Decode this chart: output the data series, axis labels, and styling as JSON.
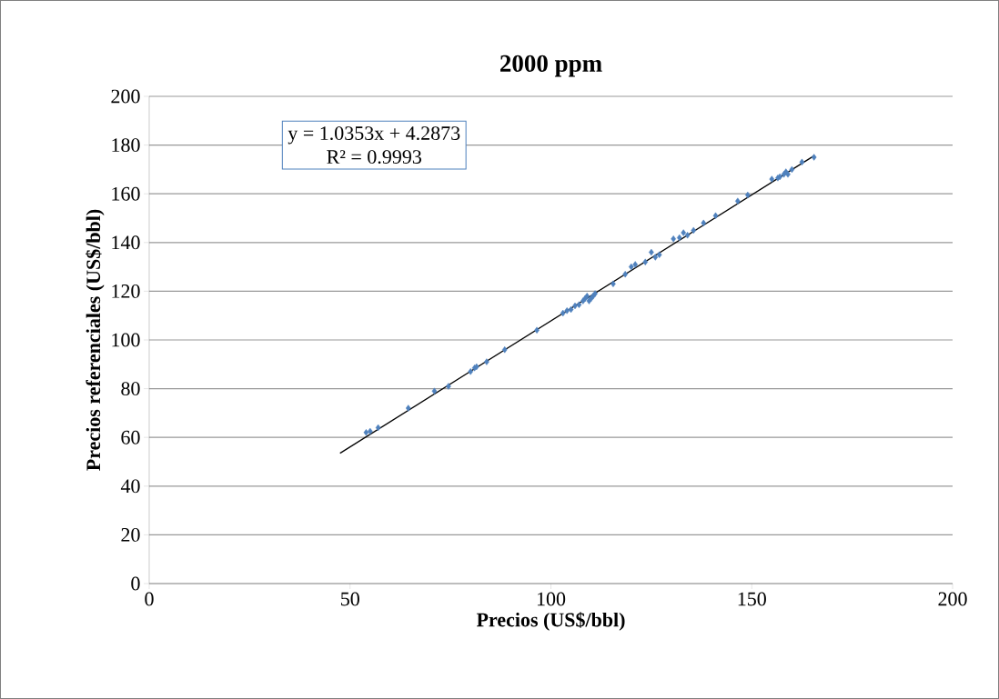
{
  "chart_data": {
    "type": "scatter",
    "title": "2000 ppm",
    "xlabel": "Precios (US$/bbl)",
    "ylabel": "Precios referenciales (US$/bbl)",
    "annotations": [
      "y = 1.0353x + 4.2873",
      "R² = 0.9993"
    ],
    "xlim": [
      0,
      200
    ],
    "xticks": [
      0,
      50,
      100,
      150,
      200
    ],
    "ylim": [
      0,
      200
    ],
    "yticks": [
      0,
      20,
      40,
      60,
      80,
      100,
      120,
      140,
      160,
      180,
      200
    ],
    "grid": "y",
    "marker": "diamond",
    "series": [
      {
        "color": "#4f81bd",
        "x": [
          54,
          55,
          57,
          64.5,
          71,
          74.5,
          80,
          81,
          81.5,
          84,
          88.5,
          96.5,
          103,
          104,
          105,
          106,
          107,
          108,
          108.5,
          109,
          109.5,
          110,
          110.5,
          111,
          115.5,
          118.5,
          120,
          121,
          123.5,
          125,
          126,
          127,
          130.5,
          132,
          133,
          134,
          135.5,
          138,
          141,
          146.5,
          149,
          155,
          156.5,
          157,
          158,
          158.5,
          159,
          160,
          162.5,
          165.5
        ],
        "values": [
          62,
          62.5,
          64,
          72,
          79,
          81,
          87,
          88.5,
          89,
          91,
          96,
          104,
          111,
          112,
          112.5,
          114,
          114.5,
          116,
          117,
          118,
          116,
          117,
          118,
          119,
          123,
          127,
          130,
          131,
          132,
          136,
          134,
          135,
          141.5,
          142,
          144,
          143,
          145,
          148,
          151,
          157,
          159.5,
          166,
          166.5,
          167,
          168,
          169,
          168,
          170,
          173,
          175
        ]
      },
      {
        "type": "line",
        "color": "#000000",
        "marker": "none",
        "x": [
          47.5,
          165.5
        ],
        "values": [
          53.5,
          175.6
        ]
      }
    ]
  }
}
